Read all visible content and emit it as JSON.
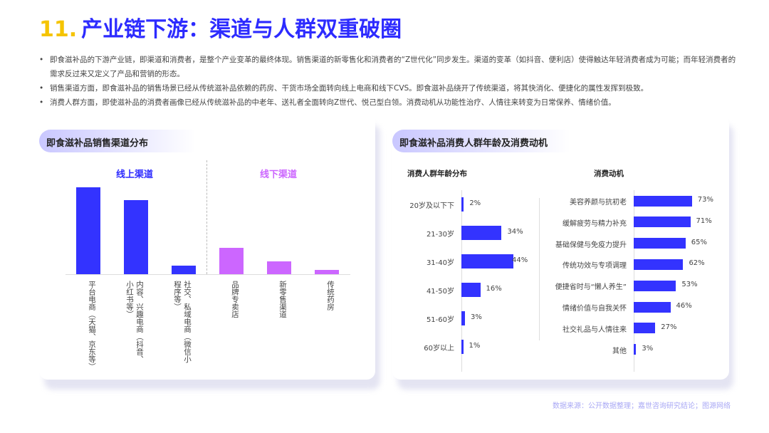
{
  "title": {
    "number": "11.",
    "text": "产业链下游：渠道与人群双重破圈"
  },
  "bullets": [
    "即食滋补品的下游产业链，即渠道和消费者，是整个产业变革的最终体现。销售渠道的新零售化和消费者的“Z世代化”同步发生。渠道的变革（如抖音、便利店）使得触达年轻消费者成为可能；而年轻消费者的需求反过来又定义了产品和营销的形态。",
    "销售渠道方面，即食滋补品的销售场景已经从传统滋补品依赖的药房、干货市场全面转向线上电商和线下CVS。即食滋补品绕开了传统渠道，将其快消化、便捷化的属性发挥到极致。",
    "消费人群方面，即使滋补品的消费者画像已经从传统滋补品的中老年、送礼者全面转向Z世代、悦己型白领。消费动机从功能性治疗、人情往来转变为日常保养、情绪价值。"
  ],
  "left_card": {
    "header": "即食滋补品销售渠道分布",
    "online_label": "线上渠道",
    "offline_label": "线下渠道"
  },
  "right_card": {
    "header": "即食滋补品消费人群年龄及消费动机",
    "age_title": "消费人群年龄分布",
    "motive_title": "消费动机"
  },
  "colors": {
    "accent": "#2d2bff",
    "online": "#3333ff",
    "offline": "#cc66ff",
    "title_number": "#f5c400"
  },
  "chart_data": [
    {
      "type": "bar",
      "title": "",
      "note": "no axis or values printed; relative bar heights (percent of tallest)",
      "categories": [
        "平台电商（天猫、京东等）",
        "内容、兴趣电商（抖音、小红书等）",
        "社交、私域电商（微信小程序等）",
        "品牌专卖店",
        "新零售渠道",
        "传统药房"
      ],
      "groups": [
        "线上渠道",
        "线上渠道",
        "线上渠道",
        "线下渠道",
        "线下渠道",
        "线下渠道"
      ],
      "values": [
        100,
        85,
        10,
        30,
        15,
        5
      ]
    },
    {
      "type": "bar",
      "orientation": "horizontal",
      "title": "消费人群年龄分布",
      "categories": [
        "20岁及以下下",
        "21-30岁",
        "31-40岁",
        "41-50岁",
        "51-60岁",
        "60岁以上"
      ],
      "values": [
        2,
        34,
        44,
        16,
        3,
        1
      ],
      "labels": [
        "2%",
        "34%",
        "44%",
        "16%",
        "3%",
        "1%"
      ]
    },
    {
      "type": "bar",
      "orientation": "horizontal",
      "title": "消费动机",
      "categories": [
        "美容养颜与抗初老",
        "缓解疲劳与精力补充",
        "基础保健与免疫力提升",
        "传统功效与专项调理",
        "便捷省时与“懒人养生”",
        "情绪价值与自我关怀",
        "社交礼品与人情往来",
        "其他"
      ],
      "values": [
        73,
        71,
        65,
        62,
        53,
        46,
        27,
        3
      ],
      "labels": [
        "73%",
        "71%",
        "65%",
        "62%",
        "53%",
        "46%",
        "27%",
        "3%"
      ]
    }
  ],
  "source": "数据来源：公开数据整理；嘉世咨询研究结论；图源网络"
}
